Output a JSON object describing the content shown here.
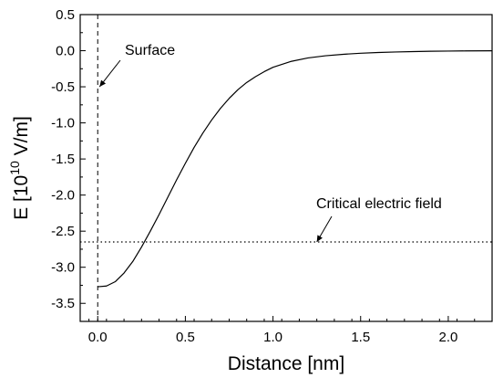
{
  "chart_data": {
    "type": "line",
    "xlabel": "Distance [nm]",
    "ylabel": {
      "prefix": "E [10",
      "exponent": "10",
      "suffix": " V/m]"
    },
    "xlim": [
      -0.1,
      2.25
    ],
    "ylim": [
      -3.75,
      0.5
    ],
    "x_ticks": [
      0.0,
      0.5,
      1.0,
      1.5,
      2.0
    ],
    "x_tick_labels": [
      "0.0",
      "0.5",
      "1.0",
      "1.5",
      "2.0"
    ],
    "y_ticks": [
      0.5,
      0.0,
      -0.5,
      -1.0,
      -1.5,
      -2.0,
      -2.5,
      -3.0,
      -3.5
    ],
    "y_tick_labels": [
      "0.5",
      "0.0",
      "-0.5",
      "-1.0",
      "-1.5",
      "-2.0",
      "-2.5",
      "-3.0",
      "-3.5"
    ],
    "grid": false,
    "series": [
      {
        "style": "solid",
        "color": "#000000",
        "x": [
          0.0,
          0.05,
          0.1,
          0.15,
          0.2,
          0.25,
          0.3,
          0.35,
          0.4,
          0.45,
          0.5,
          0.55,
          0.6,
          0.65,
          0.7,
          0.75,
          0.8,
          0.85,
          0.9,
          0.95,
          1.0,
          1.1,
          1.2,
          1.3,
          1.4,
          1.5,
          1.6,
          1.7,
          1.8,
          1.9,
          2.0,
          2.1,
          2.25
        ],
        "y": [
          -3.27,
          -3.26,
          -3.2,
          -3.08,
          -2.92,
          -2.72,
          -2.5,
          -2.27,
          -2.03,
          -1.79,
          -1.56,
          -1.34,
          -1.14,
          -0.96,
          -0.8,
          -0.66,
          -0.54,
          -0.44,
          -0.36,
          -0.29,
          -0.23,
          -0.15,
          -0.1,
          -0.07,
          -0.05,
          -0.035,
          -0.025,
          -0.018,
          -0.012,
          -0.008,
          -0.005,
          -0.003,
          -0.001
        ]
      }
    ],
    "reference_lines": [
      {
        "orientation": "vertical",
        "value": 0.0,
        "style": "dashed",
        "color": "#000000"
      },
      {
        "orientation": "horizontal",
        "value": -2.65,
        "style": "dotted",
        "color": "#000000"
      }
    ],
    "annotations": [
      {
        "text": "Surface",
        "arrow_to": [
          0.0,
          -0.5
        ]
      },
      {
        "text": "Critical electric field",
        "arrow_to": [
          1.25,
          -2.65
        ]
      }
    ]
  }
}
